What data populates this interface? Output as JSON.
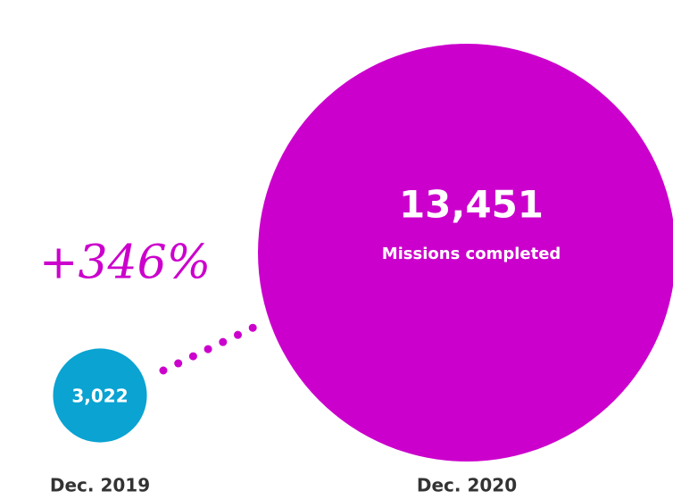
{
  "chart_data": {
    "type": "bubble",
    "categories": [
      "Dec. 2019",
      "Dec. 2020"
    ],
    "series": [
      {
        "name": "Missions completed",
        "colors": [
          "#0aa3d2",
          "#cc00cc"
        ],
        "values": [
          3022,
          13451
        ],
        "value_labels": [
          "3,022",
          "13,451"
        ]
      }
    ],
    "annotations": [
      "+346%"
    ]
  }
}
